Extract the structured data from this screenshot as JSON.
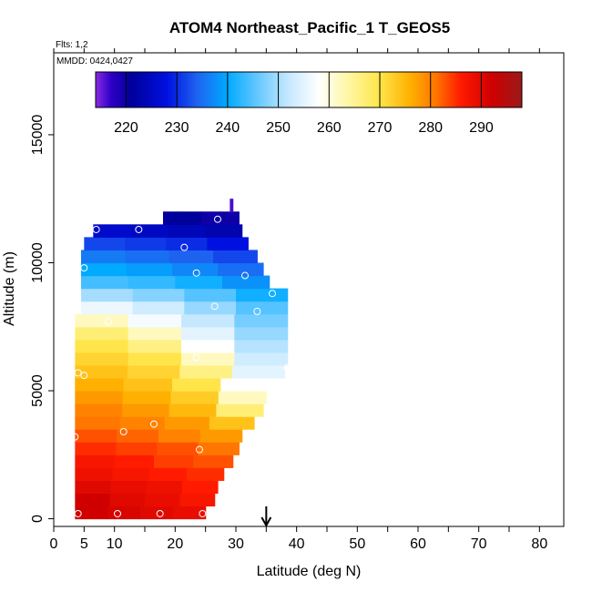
{
  "chart_data": {
    "type": "heatmap",
    "title": "ATOM4 Northeast_Pacific_1 T_GEOS5",
    "annotations": {
      "flights": "Flts: 1,2",
      "mmdd": "MMDD: 0424,0427"
    },
    "xlabel": "Latitude (deg N)",
    "ylabel": "Altitude (m)",
    "xlim": [
      0,
      84
    ],
    "ylim": [
      -300,
      18200
    ],
    "x_ticks": [
      0,
      5,
      10,
      20,
      30,
      40,
      50,
      60,
      70,
      80
    ],
    "x_minor_ticks": [
      15,
      25,
      35,
      45,
      55,
      65,
      75,
      85
    ],
    "y_ticks": [
      0,
      5000,
      10000,
      15000
    ],
    "grid": false,
    "colorbar": {
      "placement": "top",
      "min": 214,
      "max": 298,
      "ticks": [
        220,
        230,
        240,
        250,
        260,
        270,
        280,
        290
      ],
      "colors": [
        {
          "v": 214,
          "c": "#8a2be2"
        },
        {
          "v": 217,
          "c": "#2f00c8"
        },
        {
          "v": 221,
          "c": "#00009a"
        },
        {
          "v": 228,
          "c": "#0010e0"
        },
        {
          "v": 234,
          "c": "#1e63f0"
        },
        {
          "v": 240,
          "c": "#00aaff"
        },
        {
          "v": 246,
          "c": "#66c8ff"
        },
        {
          "v": 252,
          "c": "#c6e8ff"
        },
        {
          "v": 258,
          "c": "#ffffff"
        },
        {
          "v": 264,
          "c": "#fff6a0"
        },
        {
          "v": 270,
          "c": "#ffe54a"
        },
        {
          "v": 276,
          "c": "#ffb000"
        },
        {
          "v": 281,
          "c": "#ff7600"
        },
        {
          "v": 286,
          "c": "#ff1a00"
        },
        {
          "v": 292,
          "c": "#d00000"
        },
        {
          "v": 298,
          "c": "#9a1a1a"
        }
      ]
    },
    "curtain": {
      "type": "heatmap",
      "layer_thickness_m": 500,
      "values_K": [
        {
          "alt": 0,
          "xmin": 3.5,
          "xmax": 25.0,
          "T": [
            292,
            291,
            290,
            289
          ]
        },
        {
          "alt": 500,
          "xmin": 3.5,
          "xmax": 26.5,
          "T": [
            292,
            290,
            289,
            287
          ]
        },
        {
          "alt": 1000,
          "xmin": 3.5,
          "xmax": 27.0,
          "T": [
            290,
            289,
            288,
            286
          ]
        },
        {
          "alt": 1500,
          "xmin": 3.5,
          "xmax": 28.0,
          "T": [
            288,
            287,
            286,
            285
          ]
        },
        {
          "alt": 2000,
          "xmin": 3.5,
          "xmax": 29.5,
          "T": [
            287,
            286,
            284,
            283
          ]
        },
        {
          "alt": 2500,
          "xmin": 3.5,
          "xmax": 30.5,
          "T": [
            285,
            284,
            283,
            281
          ]
        },
        {
          "alt": 3000,
          "xmin": 3.5,
          "xmax": 31.0,
          "T": [
            283,
            282,
            280,
            278
          ]
        },
        {
          "alt": 3500,
          "xmin": 3.5,
          "xmax": 33.0,
          "T": [
            281,
            280,
            278,
            274
          ]
        },
        {
          "alt": 4000,
          "xmin": 3.5,
          "xmax": 34.5,
          "T": [
            280,
            278,
            275,
            267
          ]
        },
        {
          "alt": 4500,
          "xmin": 3.5,
          "xmax": 35.0,
          "T": [
            278,
            276,
            273,
            262
          ]
        },
        {
          "alt": 5000,
          "xmin": 3.5,
          "xmax": 35.5,
          "T": [
            276,
            274,
            270,
            258
          ]
        },
        {
          "alt": 5500,
          "xmin": 3.5,
          "xmax": 38.0,
          "T": [
            274,
            272,
            266,
            255
          ]
        },
        {
          "alt": 6000,
          "xmin": 3.5,
          "xmax": 38.5,
          "T": [
            272,
            270,
            262,
            253
          ]
        },
        {
          "alt": 6500,
          "xmin": 3.5,
          "xmax": 38.5,
          "T": [
            270,
            266,
            258,
            251
          ]
        },
        {
          "alt": 7000,
          "xmin": 3.5,
          "xmax": 38.5,
          "T": [
            267,
            262,
            255,
            249
          ]
        },
        {
          "alt": 7500,
          "xmin": 3.5,
          "xmax": 38.5,
          "T": [
            262,
            257,
            252,
            247
          ]
        },
        {
          "alt": 8000,
          "xmin": 4.5,
          "xmax": 38.5,
          "T": [
            256,
            253,
            249,
            245
          ]
        },
        {
          "alt": 8500,
          "xmin": 4.5,
          "xmax": 38.5,
          "T": [
            250,
            248,
            245,
            241
          ]
        },
        {
          "alt": 9000,
          "xmin": 4.5,
          "xmax": 35.5,
          "T": [
            244,
            243,
            241,
            238
          ]
        },
        {
          "alt": 9500,
          "xmin": 4.5,
          "xmax": 34.5,
          "T": [
            240,
            239,
            237,
            235
          ]
        },
        {
          "alt": 10000,
          "xmin": 4.5,
          "xmax": 33.5,
          "T": [
            236,
            235,
            234,
            232
          ]
        },
        {
          "alt": 10500,
          "xmin": 5.0,
          "xmax": 32.0,
          "T": [
            232,
            231,
            230,
            228
          ]
        },
        {
          "alt": 11000,
          "xmin": 6.5,
          "xmax": 31.0,
          "T": [
            226,
            225,
            224,
            223
          ]
        },
        {
          "alt": 11500,
          "xmin": 18.0,
          "xmax": 30.5,
          "T": [
            221,
            221,
            220,
            220
          ]
        },
        {
          "alt": 12000,
          "xmin": 29.0,
          "xmax": 29.5,
          "T": [
            216,
            216,
            216,
            216
          ]
        }
      ]
    },
    "sample_points": [
      {
        "x": 4.0,
        "y": 200
      },
      {
        "x": 10.5,
        "y": 200
      },
      {
        "x": 17.5,
        "y": 200
      },
      {
        "x": 24.5,
        "y": 200
      },
      {
        "x": 3.5,
        "y": 3200
      },
      {
        "x": 11.5,
        "y": 3400
      },
      {
        "x": 16.5,
        "y": 3700
      },
      {
        "x": 24.0,
        "y": 2700
      },
      {
        "x": 4.0,
        "y": 5700
      },
      {
        "x": 5.0,
        "y": 5600
      },
      {
        "x": 23.5,
        "y": 6300
      },
      {
        "x": 38.5,
        "y": 5900
      },
      {
        "x": 9.0,
        "y": 7700
      },
      {
        "x": 26.5,
        "y": 8300
      },
      {
        "x": 33.5,
        "y": 8100
      },
      {
        "x": 36.0,
        "y": 8800
      },
      {
        "x": 5.0,
        "y": 9800
      },
      {
        "x": 23.5,
        "y": 9600
      },
      {
        "x": 31.5,
        "y": 9500
      },
      {
        "x": 21.5,
        "y": 10600
      },
      {
        "x": 7.0,
        "y": 11300
      },
      {
        "x": 14.0,
        "y": 11300
      },
      {
        "x": 27.0,
        "y": 11700
      }
    ],
    "marker_arrow": {
      "x": 35.0
    }
  }
}
